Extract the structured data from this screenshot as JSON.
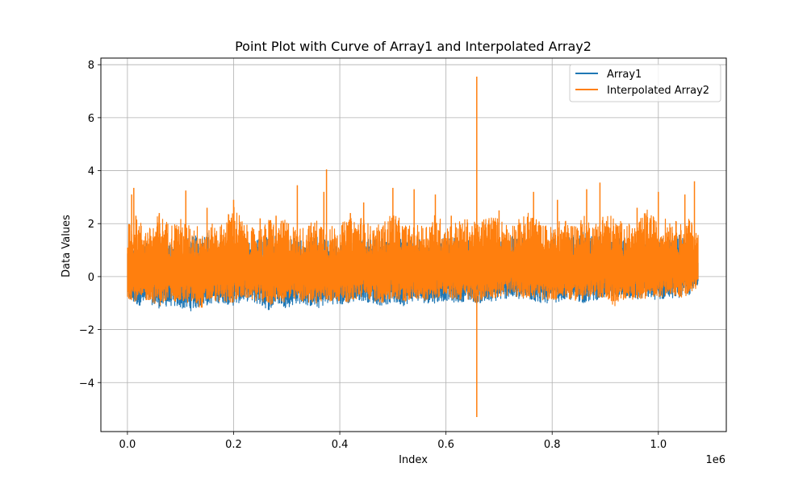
{
  "chart_data": {
    "type": "line",
    "title": "Point Plot with Curve of Array1 and Interpolated Array2",
    "xlabel": "Index",
    "ylabel": "Data Values",
    "x_offset_label": "1e6",
    "xlim": [
      -50000,
      1128000
    ],
    "ylim": [
      -5.85,
      8.25
    ],
    "x_ticks": [
      0.0,
      0.2,
      0.4,
      0.6,
      0.8,
      1.0
    ],
    "x_tick_labels": [
      "0.0",
      "0.2",
      "0.4",
      "0.6",
      "0.8",
      "1.0"
    ],
    "y_ticks": [
      -4,
      -2,
      0,
      2,
      4,
      6,
      8
    ],
    "y_tick_labels": [
      "−4",
      "−2",
      "0",
      "2",
      "4",
      "6",
      "8"
    ],
    "grid": true,
    "legend_position": "top-right",
    "series": [
      {
        "name": "Array1",
        "color": "#1f77b4",
        "x": [
          0,
          20000,
          40000,
          60000,
          80000,
          100000,
          120000,
          140000,
          150000,
          160000,
          180000,
          200000,
          220000,
          240000,
          260000,
          270000,
          280000,
          300000,
          320000,
          340000,
          360000,
          380000,
          400000,
          420000,
          440000,
          460000,
          480000,
          500000,
          520000,
          540000,
          560000,
          580000,
          600000,
          620000,
          640000,
          660000,
          680000,
          700000,
          720000,
          740000,
          760000,
          780000,
          800000,
          820000,
          840000,
          860000,
          880000,
          900000,
          920000,
          940000,
          960000,
          980000,
          1000000,
          1020000,
          1040000,
          1060000,
          1075000
        ],
        "upper": [
          1.2,
          1.1,
          1.3,
          1.5,
          1.2,
          1.4,
          1.5,
          1.6,
          1.8,
          1.4,
          1.3,
          1.5,
          1.2,
          1.4,
          1.6,
          1.5,
          1.7,
          1.4,
          1.5,
          1.3,
          1.6,
          1.4,
          1.5,
          1.3,
          1.4,
          1.6,
          1.5,
          1.4,
          1.7,
          1.5,
          1.3,
          1.4,
          1.6,
          1.5,
          1.4,
          1.3,
          1.2,
          1.4,
          1.5,
          1.6,
          1.4,
          1.3,
          1.5,
          1.4,
          1.6,
          1.7,
          1.5,
          1.6,
          1.4,
          1.5,
          1.3,
          1.4,
          1.5,
          1.4,
          1.6,
          1.6,
          0.8
        ],
        "lower": [
          -0.9,
          -1.1,
          -1.0,
          -1.2,
          -1.1,
          -1.2,
          -1.3,
          -1.1,
          -1.1,
          -1.0,
          -1.0,
          -1.1,
          -0.9,
          -1.0,
          -1.2,
          -1.3,
          -1.0,
          -1.2,
          -1.0,
          -1.1,
          -1.2,
          -1.0,
          -1.1,
          -1.0,
          -0.9,
          -1.0,
          -1.1,
          -1.0,
          -1.1,
          -0.9,
          -1.0,
          -1.0,
          -0.9,
          -1.0,
          -0.9,
          -1.0,
          -1.0,
          -0.9,
          -0.8,
          -0.9,
          -0.9,
          -1.0,
          -1.0,
          -0.9,
          -0.9,
          -1.0,
          -0.9,
          -0.8,
          -0.9,
          -0.8,
          -0.9,
          -0.8,
          -0.9,
          -0.8,
          -0.8,
          -0.7,
          -0.3
        ]
      },
      {
        "name": "Interpolated Array2",
        "color": "#ff7f0e",
        "x": [
          0,
          20000,
          40000,
          60000,
          80000,
          100000,
          120000,
          140000,
          150000,
          160000,
          180000,
          200000,
          220000,
          240000,
          260000,
          270000,
          280000,
          300000,
          320000,
          340000,
          360000,
          380000,
          400000,
          420000,
          440000,
          460000,
          480000,
          500000,
          520000,
          540000,
          560000,
          580000,
          600000,
          620000,
          640000,
          660000,
          680000,
          700000,
          720000,
          740000,
          760000,
          780000,
          800000,
          820000,
          840000,
          860000,
          880000,
          900000,
          920000,
          940000,
          960000,
          980000,
          1000000,
          1020000,
          1040000,
          1060000,
          1075000
        ],
        "upper": [
          2.0,
          2.2,
          1.8,
          2.4,
          2.0,
          2.2,
          1.9,
          2.0,
          1.7,
          2.0,
          2.0,
          2.8,
          2.0,
          1.8,
          2.0,
          2.3,
          2.0,
          2.2,
          1.8,
          2.0,
          2.2,
          1.9,
          2.0,
          2.2,
          2.3,
          1.9,
          2.0,
          2.5,
          2.0,
          1.9,
          2.0,
          2.4,
          2.0,
          2.1,
          2.2,
          2.0,
          2.4,
          2.2,
          2.0,
          2.2,
          2.5,
          2.0,
          1.9,
          2.2,
          2.0,
          2.3,
          2.0,
          2.5,
          2.2,
          2.0,
          2.0,
          2.6,
          2.0,
          2.3,
          2.0,
          2.2,
          1.6
        ],
        "lower": [
          -0.8,
          -1.0,
          -0.9,
          -1.1,
          -0.9,
          -1.0,
          -1.0,
          -1.2,
          -1.0,
          -0.9,
          -1.0,
          -1.0,
          -0.8,
          -0.9,
          -1.0,
          -1.1,
          -0.9,
          -1.0,
          -0.9,
          -1.0,
          -1.0,
          -1.0,
          -0.9,
          -1.0,
          -0.8,
          -0.9,
          -1.0,
          -0.9,
          -1.0,
          -0.8,
          -0.9,
          -0.8,
          -0.8,
          -0.9,
          -0.9,
          -1.0,
          -0.8,
          -0.8,
          -0.7,
          -0.8,
          -0.8,
          -0.9,
          -0.9,
          -0.8,
          -0.9,
          -0.9,
          -0.8,
          -0.8,
          -1.2,
          -0.8,
          -0.9,
          -0.8,
          -0.8,
          -0.7,
          -0.8,
          -0.8,
          -0.3
        ],
        "spikes": [
          {
            "x": 8000,
            "y": 3.1
          },
          {
            "x": 12000,
            "y": 3.35
          },
          {
            "x": 16000,
            "y": 2.3
          },
          {
            "x": 60000,
            "y": 2.4
          },
          {
            "x": 110000,
            "y": 3.25
          },
          {
            "x": 150000,
            "y": 2.6
          },
          {
            "x": 200000,
            "y": 2.9
          },
          {
            "x": 250000,
            "y": 2.2
          },
          {
            "x": 280000,
            "y": 2.3
          },
          {
            "x": 320000,
            "y": 3.45
          },
          {
            "x": 370000,
            "y": 3.2
          },
          {
            "x": 375000,
            "y": 4.05
          },
          {
            "x": 420000,
            "y": 2.4
          },
          {
            "x": 445000,
            "y": 2.8
          },
          {
            "x": 500000,
            "y": 3.35
          },
          {
            "x": 540000,
            "y": 3.3
          },
          {
            "x": 580000,
            "y": 3.1
          },
          {
            "x": 610000,
            "y": 2.3
          },
          {
            "x": 658000,
            "y": 7.55
          },
          {
            "x": 700000,
            "y": 2.5
          },
          {
            "x": 765000,
            "y": 3.2
          },
          {
            "x": 810000,
            "y": 2.9
          },
          {
            "x": 865000,
            "y": 3.3
          },
          {
            "x": 890000,
            "y": 3.55
          },
          {
            "x": 960000,
            "y": 2.6
          },
          {
            "x": 1000000,
            "y": 3.2
          },
          {
            "x": 1050000,
            "y": 3.1
          },
          {
            "x": 1068000,
            "y": 3.6
          }
        ],
        "dips": [
          {
            "x": 658000,
            "y": -5.3
          }
        ]
      }
    ]
  }
}
